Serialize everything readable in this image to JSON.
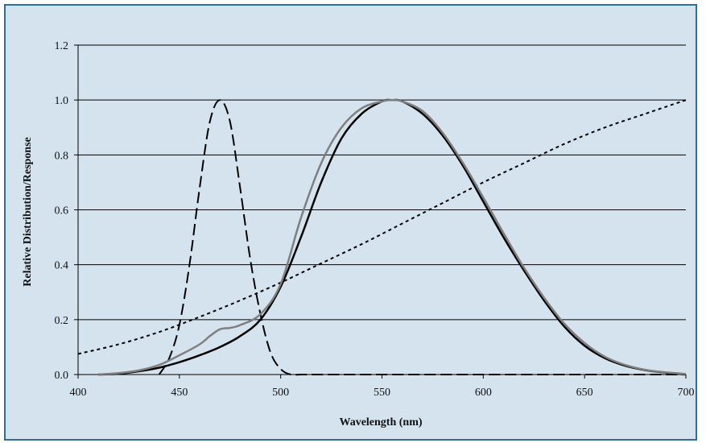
{
  "chart_data": {
    "type": "line",
    "title": "",
    "xlabel": "Wavelength (nm)",
    "ylabel": "Relative Distribution/Response",
    "xlim": [
      400,
      700
    ],
    "ylim": [
      0,
      1.2
    ],
    "xticks": [
      "400",
      "450",
      "500",
      "550",
      "600",
      "650",
      "700"
    ],
    "yticks": [
      "0.0",
      "0.2",
      "0.4",
      "0.6",
      "0.8",
      "1.0",
      "1.2"
    ],
    "grid": "horizontal",
    "legend": "none",
    "series": [
      {
        "style": "dashed",
        "color": "#000000",
        "x": [
          440,
          445,
          450,
          455,
          460,
          465,
          470,
          475,
          480,
          485,
          490,
          495,
          500,
          505,
          510,
          520,
          550,
          600,
          650,
          700
        ],
        "y": [
          0.0,
          0.06,
          0.18,
          0.4,
          0.68,
          0.92,
          1.0,
          0.92,
          0.68,
          0.42,
          0.22,
          0.08,
          0.02,
          0.0,
          0.0,
          0.0,
          0.0,
          0.0,
          0.0,
          0.0
        ]
      },
      {
        "style": "dotted",
        "color": "#000000",
        "x": [
          400,
          420,
          440,
          460,
          480,
          500,
          520,
          540,
          560,
          580,
          600,
          620,
          640,
          660,
          680,
          700
        ],
        "y": [
          0.075,
          0.11,
          0.155,
          0.21,
          0.27,
          0.335,
          0.405,
          0.475,
          0.55,
          0.625,
          0.7,
          0.77,
          0.84,
          0.9,
          0.95,
          1.0
        ]
      },
      {
        "style": "solid",
        "color": "#000000",
        "x": [
          410,
          420,
          430,
          440,
          450,
          460,
          470,
          480,
          490,
          500,
          510,
          520,
          530,
          540,
          550,
          555,
          560,
          570,
          580,
          590,
          600,
          610,
          620,
          630,
          640,
          650,
          660,
          670,
          680,
          690,
          700
        ],
        "y": [
          0.0,
          0.003,
          0.012,
          0.025,
          0.045,
          0.07,
          0.1,
          0.14,
          0.2,
          0.32,
          0.5,
          0.7,
          0.86,
          0.95,
          0.995,
          1.0,
          0.995,
          0.95,
          0.87,
          0.76,
          0.63,
          0.5,
          0.38,
          0.27,
          0.175,
          0.105,
          0.06,
          0.032,
          0.016,
          0.007,
          0.0
        ]
      },
      {
        "style": "solid",
        "color": "#7f7f7f",
        "x": [
          410,
          420,
          430,
          440,
          450,
          460,
          465,
          470,
          475,
          480,
          490,
          500,
          510,
          520,
          530,
          540,
          550,
          555,
          560,
          570,
          580,
          590,
          600,
          610,
          620,
          630,
          640,
          650,
          660,
          670,
          680,
          690,
          700
        ],
        "y": [
          0.0,
          0.005,
          0.015,
          0.035,
          0.07,
          0.11,
          0.14,
          0.165,
          0.17,
          0.18,
          0.22,
          0.33,
          0.57,
          0.77,
          0.9,
          0.97,
          0.995,
          1.0,
          0.995,
          0.96,
          0.88,
          0.77,
          0.645,
          0.515,
          0.39,
          0.28,
          0.185,
          0.115,
          0.065,
          0.035,
          0.017,
          0.008,
          0.002
        ]
      }
    ]
  }
}
